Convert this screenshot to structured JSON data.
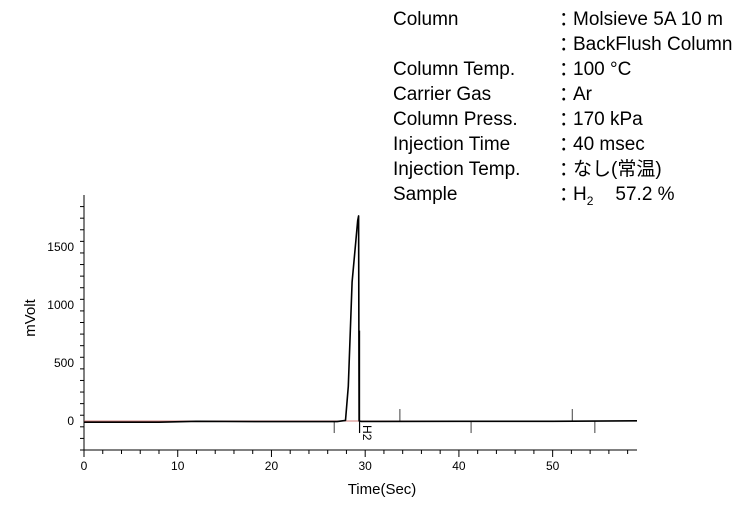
{
  "conditions": [
    {
      "label": "Column",
      "colon": "：",
      "value": "Molsieve 5A 10 m"
    },
    {
      "label": "",
      "colon": "：",
      "value": "BackFlush Column"
    },
    {
      "label": "Column Temp.",
      "colon": "：",
      "value": "100 °C"
    },
    {
      "label": "Carrier Gas",
      "colon": "：",
      "value": "Ar"
    },
    {
      "label": "Column Press.",
      "colon": "：",
      "value": "170 kPa"
    },
    {
      "label": "Injection Time",
      "colon": "：",
      "value": "40 msec"
    },
    {
      "label": "Injection Temp.",
      "colon": "：",
      "value": "なし(常温)"
    },
    {
      "label": "Sample",
      "colon": "：",
      "value_main": "H",
      "value_sub": "2",
      "value_rest": "57.2 %"
    }
  ],
  "chart_data": {
    "type": "line",
    "xlabel": "Time(Sec)",
    "ylabel": "mVolt",
    "xlim": [
      0,
      59
    ],
    "ylim": [
      -250,
      1950
    ],
    "x_ticks": [
      0,
      10,
      20,
      30,
      40,
      50
    ],
    "y_ticks": [
      0,
      500,
      1000,
      1500
    ],
    "series": [
      {
        "x": [
          0,
          8,
          12,
          20,
          27,
          27.9,
          28.2,
          28.6,
          29.0,
          29.2,
          29.3,
          29.35,
          29.6,
          31,
          40,
          50,
          59
        ],
        "values": [
          -10,
          -10,
          -2,
          -5,
          -5,
          5,
          300,
          1200,
          1550,
          1730,
          1770,
          0,
          -3,
          -3,
          -2,
          -2,
          2
        ]
      }
    ],
    "peak_label": {
      "text": "H2",
      "x": 29.35
    },
    "peak_marker": {
      "x": 29.4,
      "top": 780
    },
    "event_marks": [
      {
        "x": 26.7,
        "dir": "down"
      },
      {
        "x": 33.7,
        "dir": "up"
      },
      {
        "x": 41.3,
        "dir": "down"
      },
      {
        "x": 52.1,
        "dir": "up"
      },
      {
        "x": 54.5,
        "dir": "down"
      }
    ],
    "colors": {
      "trace": "#000000",
      "axis": "#000000",
      "baseline": "#c0504d",
      "marks": "#606060"
    }
  }
}
